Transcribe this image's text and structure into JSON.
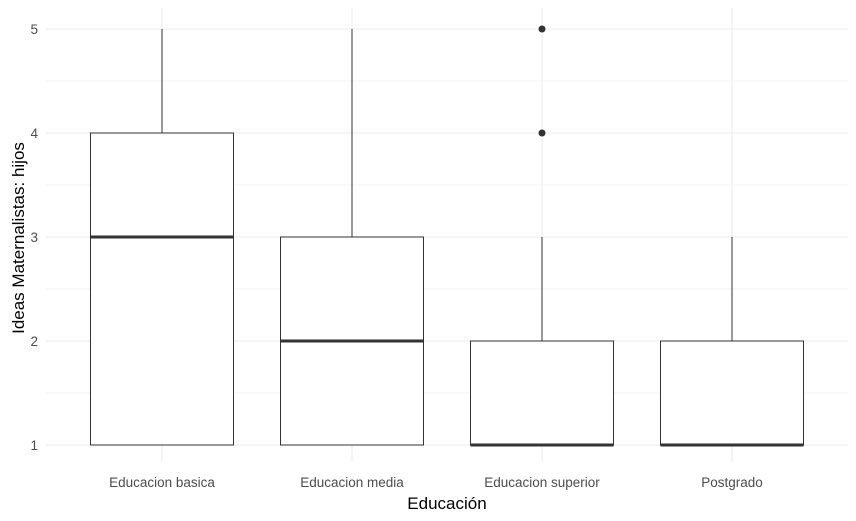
{
  "chart_data": {
    "type": "boxplot",
    "xlabel": "Educación",
    "ylabel": "Ideas Maternalistas: hijos",
    "categories": [
      "Educacion basica",
      "Educacion media",
      "Educacion superior",
      "Postgrado"
    ],
    "boxes": [
      {
        "category": "Educacion basica",
        "whisker_low": 1,
        "q1": 1,
        "median": 3,
        "q3": 4,
        "whisker_high": 5,
        "outliers": []
      },
      {
        "category": "Educacion media",
        "whisker_low": 1,
        "q1": 1,
        "median": 2,
        "q3": 3,
        "whisker_high": 5,
        "outliers": []
      },
      {
        "category": "Educacion superior",
        "whisker_low": 1,
        "q1": 1,
        "median": 1,
        "q3": 2,
        "whisker_high": 3,
        "outliers": [
          4,
          5
        ]
      },
      {
        "category": "Postgrado",
        "whisker_low": 1,
        "q1": 1,
        "median": 1,
        "q3": 2,
        "whisker_high": 3,
        "outliers": []
      }
    ],
    "yticks": [
      1,
      2,
      3,
      4,
      5
    ],
    "ylim": [
      0.85,
      5.2
    ],
    "grid": true,
    "colors": {
      "box_fill": "#ffffff",
      "box_stroke": "#333333",
      "grid_major": "#ebebeb",
      "grid_minor": "#f3f3f3"
    }
  }
}
